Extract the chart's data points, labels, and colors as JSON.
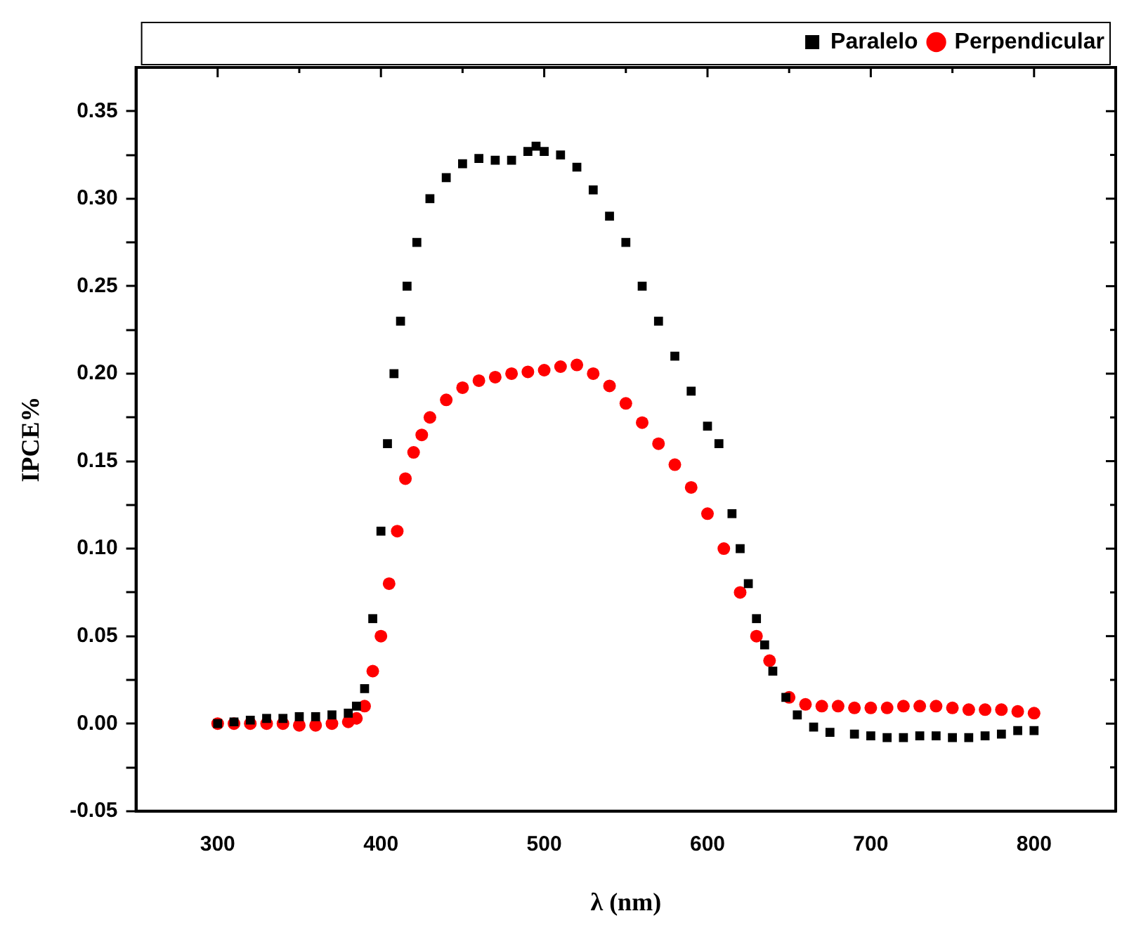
{
  "chart_data": {
    "type": "scatter",
    "xlabel": "λ (nm)",
    "ylabel": "IPCE%",
    "xlim": [
      250,
      850
    ],
    "ylim": [
      -0.05,
      0.375
    ],
    "xticks": [
      {
        "value": 250,
        "label": null
      },
      300,
      {
        "value": 350,
        "label": null
      },
      400,
      {
        "value": 450,
        "label": null
      },
      500,
      {
        "value": 550,
        "label": null
      },
      600,
      {
        "value": 650,
        "label": null
      },
      700,
      {
        "value": 750,
        "label": null
      },
      800,
      {
        "value": 850,
        "label": null
      }
    ],
    "yticks": [
      {
        "value": -0.05,
        "label": "-0.05"
      },
      {
        "value": -0.025,
        "label": null
      },
      {
        "value": 0,
        "label": "0.00"
      },
      {
        "value": 0.025,
        "label": null
      },
      {
        "value": 0.05,
        "label": "0.05"
      },
      {
        "value": 0.075,
        "label": null
      },
      {
        "value": 0.1,
        "label": "0.10"
      },
      {
        "value": 0.125,
        "label": null
      },
      {
        "value": 0.15,
        "label": "0.15"
      },
      {
        "value": 0.175,
        "label": null
      },
      {
        "value": 0.2,
        "label": "0.20"
      },
      {
        "value": 0.225,
        "label": null
      },
      {
        "value": 0.25,
        "label": "0.25"
      },
      {
        "value": 0.275,
        "label": null
      },
      {
        "value": 0.3,
        "label": "0.30"
      },
      {
        "value": 0.325,
        "label": null
      },
      {
        "value": 0.35,
        "label": "0.35"
      }
    ],
    "grid": false,
    "legend": "top right",
    "series": [
      {
        "name": "Paralelo",
        "color": "#000000",
        "marker": "square",
        "x": [
          300,
          310,
          320,
          330,
          340,
          350,
          360,
          370,
          380,
          385,
          390,
          395,
          400,
          404,
          408,
          412,
          416,
          422,
          430,
          440,
          450,
          460,
          470,
          480,
          490,
          495,
          500,
          510,
          520,
          530,
          540,
          550,
          560,
          570,
          580,
          590,
          600,
          607,
          615,
          620,
          625,
          630,
          635,
          640,
          648,
          655,
          665,
          675,
          690,
          700,
          710,
          720,
          730,
          740,
          750,
          760,
          770,
          780,
          790,
          800
        ],
        "values": [
          0.0,
          0.001,
          0.002,
          0.003,
          0.003,
          0.004,
          0.004,
          0.005,
          0.006,
          0.01,
          0.02,
          0.06,
          0.11,
          0.16,
          0.2,
          0.23,
          0.25,
          0.275,
          0.3,
          0.312,
          0.32,
          0.323,
          0.322,
          0.322,
          0.327,
          0.33,
          0.327,
          0.325,
          0.318,
          0.305,
          0.29,
          0.275,
          0.25,
          0.23,
          0.21,
          0.19,
          0.17,
          0.16,
          0.12,
          0.1,
          0.08,
          0.06,
          0.045,
          0.03,
          0.015,
          0.005,
          -0.002,
          -0.005,
          -0.006,
          -0.007,
          -0.008,
          -0.008,
          -0.007,
          -0.007,
          -0.008,
          -0.008,
          -0.007,
          -0.006,
          -0.004,
          -0.004
        ]
      },
      {
        "name": "Perpendicular",
        "color": "#ff0000",
        "marker": "circle",
        "x": [
          300,
          310,
          320,
          330,
          340,
          350,
          360,
          370,
          380,
          385,
          390,
          395,
          400,
          405,
          410,
          415,
          420,
          425,
          430,
          440,
          450,
          460,
          470,
          480,
          490,
          500,
          510,
          520,
          530,
          540,
          550,
          560,
          570,
          580,
          590,
          600,
          610,
          620,
          630,
          638,
          650,
          660,
          670,
          680,
          690,
          700,
          710,
          720,
          730,
          740,
          750,
          760,
          770,
          780,
          790,
          800
        ],
        "values": [
          0.0,
          0.0,
          0.0,
          0.0,
          0.0,
          -0.001,
          -0.001,
          0.0,
          0.001,
          0.003,
          0.01,
          0.03,
          0.05,
          0.08,
          0.11,
          0.14,
          0.155,
          0.165,
          0.175,
          0.185,
          0.192,
          0.196,
          0.198,
          0.2,
          0.201,
          0.202,
          0.204,
          0.205,
          0.2,
          0.193,
          0.183,
          0.172,
          0.16,
          0.148,
          0.135,
          0.12,
          0.1,
          0.075,
          0.05,
          0.036,
          0.015,
          0.011,
          0.01,
          0.01,
          0.009,
          0.009,
          0.009,
          0.01,
          0.01,
          0.01,
          0.009,
          0.008,
          0.008,
          0.008,
          0.007,
          0.006
        ]
      }
    ]
  }
}
